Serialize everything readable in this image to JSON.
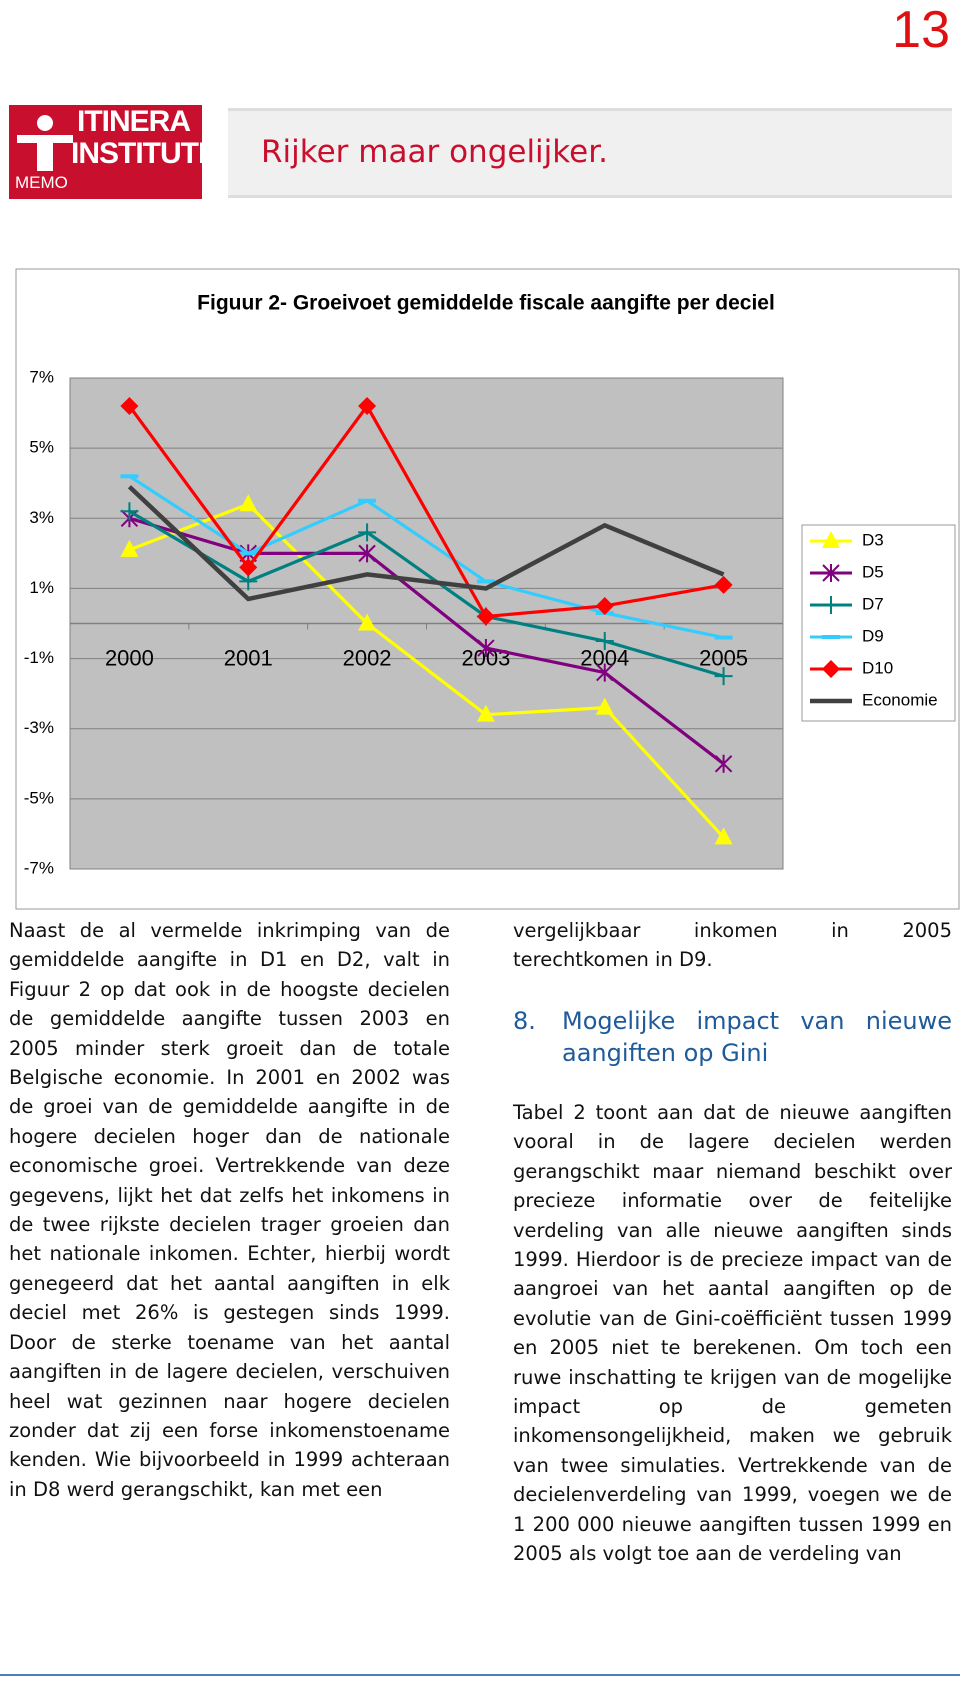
{
  "page_number": "13",
  "header": {
    "logo_line1": "ITINERA",
    "logo_line2": "INSTITUTE",
    "logo_tag": "MEMO",
    "title": "Rijker maar ongelijker."
  },
  "chart_data": {
    "type": "line",
    "title": "Figuur 2- Groeivoet gemiddelde fiscale aangifte per deciel",
    "categories": [
      "2000",
      "2001",
      "2002",
      "2003",
      "2004",
      "2005"
    ],
    "ylim": [
      -7,
      7
    ],
    "yticks": [
      {
        "value": 7,
        "label": "7%"
      },
      {
        "value": 5,
        "label": "5%"
      },
      {
        "value": 3,
        "label": "3%"
      },
      {
        "value": 1,
        "label": "1%"
      },
      {
        "value": -1,
        "label": "-1%"
      },
      {
        "value": -3,
        "label": "-3%"
      },
      {
        "value": -5,
        "label": "-5%"
      },
      {
        "value": -7,
        "label": "-7%"
      }
    ],
    "grid": true,
    "legend": "right",
    "series": [
      {
        "name": "D3",
        "color": "#ffff00",
        "marker": "triangle",
        "values": [
          2.1,
          3.4,
          0,
          -2.6,
          -2.4,
          -6.1
        ]
      },
      {
        "name": "D5",
        "color": "#800080",
        "marker": "star",
        "values": [
          3.0,
          2.0,
          2.0,
          -0.7,
          -1.4,
          -4.0
        ]
      },
      {
        "name": "D7",
        "color": "#008080",
        "marker": "plus",
        "values": [
          3.2,
          1.2,
          2.6,
          0.2,
          -0.5,
          -1.5
        ]
      },
      {
        "name": "D9",
        "color": "#33ccff",
        "marker": "dash",
        "values": [
          4.2,
          2.0,
          3.5,
          1.2,
          0.3,
          -0.4
        ]
      },
      {
        "name": "D10",
        "color": "#ff0000",
        "marker": "diamond",
        "values": [
          6.2,
          1.6,
          6.2,
          0.2,
          0.5,
          1.1
        ]
      },
      {
        "name": "Economie",
        "color": "#404040",
        "marker": "none",
        "values": [
          3.9,
          0.7,
          1.4,
          1.0,
          2.8,
          1.4
        ]
      }
    ]
  },
  "body": {
    "left_paragraph": "Naast de al vermelde inkrimping van de gemiddelde aangifte in D1 en D2, valt in Figuur 2 op dat ook in de hoogste decielen de gemiddelde aangifte tussen 2003 en 2005 minder sterk groeit dan de totale Belgische economie. In 2001 en 2002 was de groei van de gemiddelde aangifte in de hogere decielen hoger dan de nationale economische groei. Vertrekkende van deze gegevens, lijkt het dat zelfs het inkomens in de twee rijkste decielen trager groeien dan het nationale inkomen. Echter, hierbij wordt genegeerd dat het aantal aangiften in elk deciel met 26% is gestegen sinds 1999. Door de sterke toename van het aantal aangiften in de lagere decielen, verschuiven heel wat gezinnen naar hogere decielen zonder dat zij een forse inkomenstoename kenden. Wie bijvoorbeeld in 1999 achteraan in D8 werd gerangschikt, kan met een",
    "right_paragraph_1": "vergelijkbaar inkomen in 2005 terechtkomen in D9.",
    "section_number": "8.",
    "section_title": "Mogelijke impact van nieuwe aangiften op Gini",
    "right_paragraph_2": "Tabel 2 toont aan dat de nieuwe aangiften vooral in de lagere decielen werden gerangschikt maar niemand beschikt over precieze informatie over de feitelijke verdeling van alle nieuwe aangiften sinds 1999. Hierdoor is de precieze impact van de aangroei van het aantal aangiften op de evolutie van de Gini-coëfficiënt tussen 1999 en 2005 niet te berekenen. Om toch een ruwe inschatting te krijgen van de mogelijke impact op de gemeten inkomensongelijkheid, maken we gebruik van twee simulaties. Vertrekkende van de decielenverdeling van 1999, voegen we de 1 200 000 nieuwe aangiften tussen 1999 en 2005 als volgt toe aan de verdeling van"
  }
}
